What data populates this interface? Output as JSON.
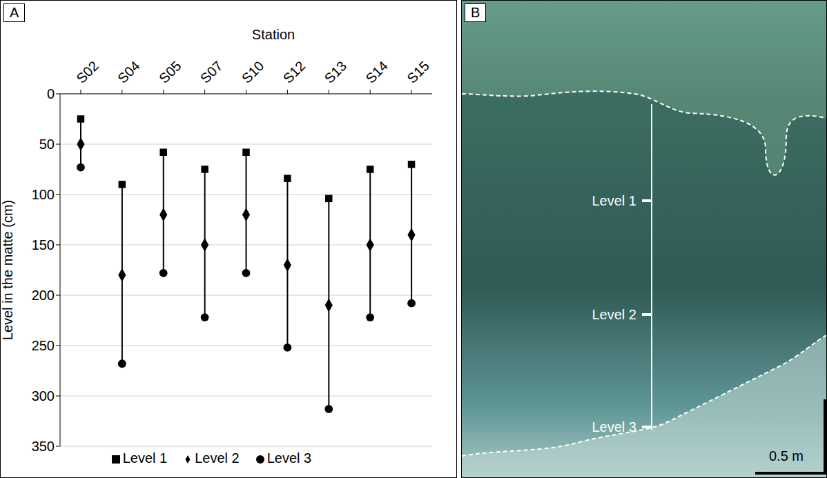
{
  "chart_data": {
    "type": "scatter",
    "panel": "A",
    "x_label": "Station",
    "y_label": "Level in the matte (cm)",
    "categories": [
      "S02",
      "S04",
      "S05",
      "S07",
      "S10",
      "S12",
      "S13",
      "S14",
      "S15"
    ],
    "series": [
      {
        "name": "Level 1",
        "color": "#000000",
        "marker": "square",
        "values": [
          25,
          90,
          58,
          75,
          58,
          84,
          104,
          75,
          70
        ]
      },
      {
        "name": "Level 2",
        "color": "#000000",
        "marker": "diamond",
        "values": [
          50,
          180,
          120,
          150,
          120,
          170,
          210,
          150,
          140
        ]
      },
      {
        "name": "Level 3",
        "color": "#000000",
        "marker": "circle",
        "values": [
          73,
          268,
          178,
          222,
          178,
          252,
          313,
          222,
          208
        ]
      }
    ],
    "ylim": [
      0,
      350
    ],
    "yticks": [
      0,
      50,
      100,
      150,
      200,
      250,
      300,
      350
    ],
    "grid": true,
    "legend": "bottom"
  },
  "photo": {
    "panel": "B",
    "labels": [
      "Level 1",
      "Level 2",
      "Level 3"
    ],
    "scale_bar": "0.5 m"
  }
}
